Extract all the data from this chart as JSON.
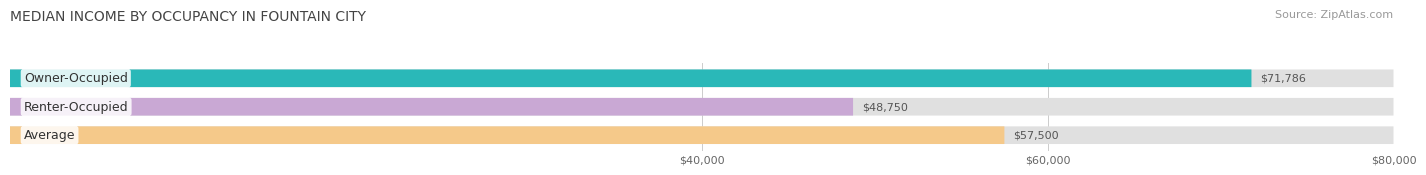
{
  "title": "MEDIAN INCOME BY OCCUPANCY IN FOUNTAIN CITY",
  "source": "Source: ZipAtlas.com",
  "categories": [
    "Owner-Occupied",
    "Renter-Occupied",
    "Average"
  ],
  "values": [
    71786,
    48750,
    57500
  ],
  "labels": [
    "$71,786",
    "$48,750",
    "$57,500"
  ],
  "bar_colors": [
    "#2ab8b8",
    "#c9a8d4",
    "#f5c98a"
  ],
  "xlim_min": 0,
  "xlim_max": 80000,
  "xticks": [
    40000,
    60000,
    80000
  ],
  "xticklabels": [
    "$40,000",
    "$60,000",
    "$80,000"
  ],
  "title_fontsize": 10,
  "source_fontsize": 8,
  "bar_label_fontsize": 8,
  "cat_label_fontsize": 9
}
